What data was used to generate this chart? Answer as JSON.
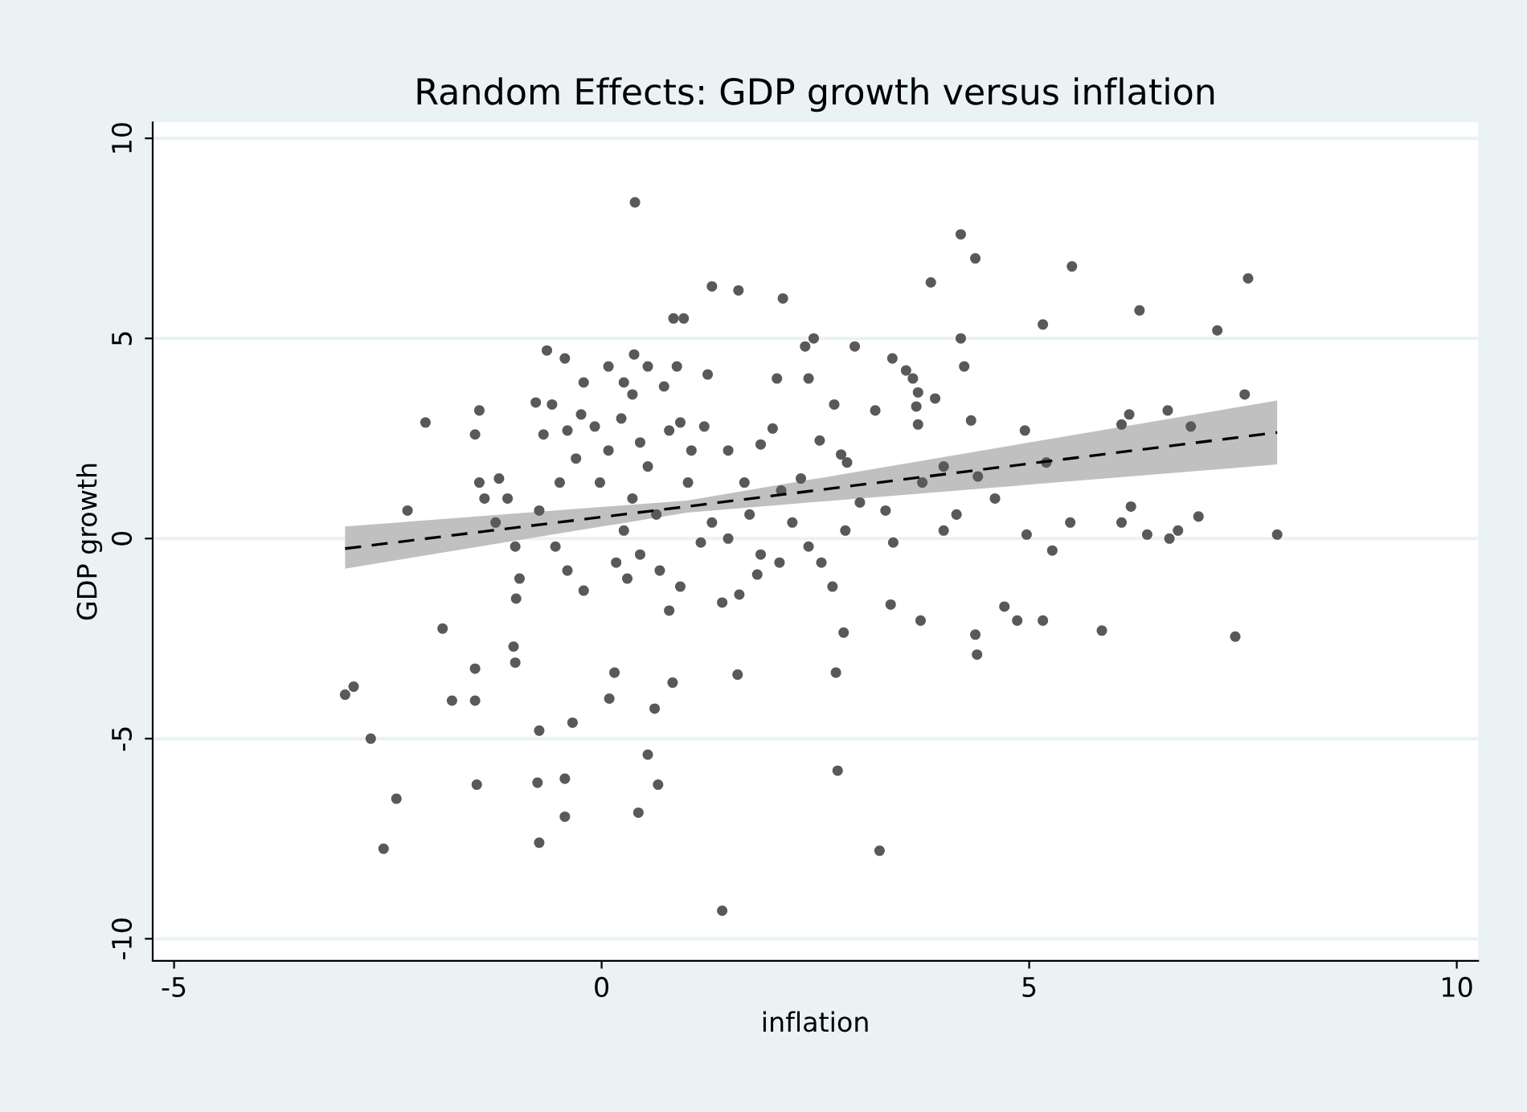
{
  "chart_data": {
    "type": "scatter",
    "title": "Random Effects: GDP growth versus inflation",
    "xlabel": "inflation",
    "ylabel": "GDP growth",
    "xlim": [
      -5.25,
      10.25
    ],
    "ylim": [
      -10.55,
      10.4
    ],
    "xticks": [
      -5,
      0,
      5,
      10
    ],
    "yticks": [
      -10,
      -5,
      0,
      5,
      10
    ],
    "grid": "y",
    "series": [
      {
        "color": "#595959",
        "marker": "circle",
        "x": [
          -3.0,
          -2.9,
          -2.7,
          -2.4,
          -2.55,
          -2.27,
          -2.06,
          -1.86,
          -1.75,
          -1.48,
          -1.48,
          -1.46,
          -1.03,
          -1.01,
          -0.75,
          -0.73,
          -0.73,
          -0.43,
          -0.43,
          -0.34,
          0.09,
          0.15,
          0.43,
          0.54,
          0.62,
          0.66,
          0.83,
          0.3,
          0.39,
          1.29,
          1.6,
          2.12,
          0.96,
          0.84,
          0.38,
          -0.64,
          -0.43,
          3.85,
          4.2,
          4.37,
          5.5,
          5.16,
          6.29,
          7.2,
          7.56,
          7.52,
          7.9,
          7.41,
          5.85,
          5.16,
          4.86,
          4.71,
          4.39,
          4.37,
          3.73,
          3.38,
          2.83,
          2.76,
          3.25,
          1.41,
          2.74,
          1.59,
          4.2,
          4.24,
          4.32,
          4.95,
          5.2,
          4.97,
          5.27,
          6.08,
          6.19,
          6.38,
          6.74,
          6.64,
          6.98,
          6.08,
          6.17,
          6.62,
          6.89,
          5.48,
          4.6,
          4.0,
          4.4,
          4.0,
          3.56,
          3.64,
          3.7,
          3.68,
          3.7,
          3.9,
          3.4,
          2.96,
          3.2,
          3.75,
          2.87,
          2.55,
          2.72,
          2.48,
          2.38,
          2.42,
          2.8,
          2.05,
          2.0,
          1.86,
          1.73,
          1.48,
          2.33,
          3.02,
          2.57,
          2.7,
          2.08,
          1.41,
          1.61,
          1.86,
          1.82,
          -1.43,
          -1.48,
          -1.37,
          -1.43,
          -1.2,
          -1.1,
          -1.24,
          -1.01,
          -0.96,
          -1.0,
          -0.68,
          -0.77,
          -0.58,
          -0.4,
          -0.3,
          -0.49,
          -0.73,
          -0.54,
          -0.4,
          -0.21,
          -0.24,
          -0.08,
          0.08,
          -0.02,
          0.23,
          0.36,
          0.45,
          0.54,
          0.36,
          0.64,
          0.26,
          0.45,
          0.68,
          0.17,
          0.79,
          0.92,
          1.05,
          1.2,
          1.01,
          0.73,
          0.88,
          1.24,
          1.16,
          0.92,
          0.79,
          -0.21,
          0.08,
          0.26,
          0.54,
          1.29,
          1.48,
          1.67,
          2.1,
          2.23,
          2.42,
          2.85,
          3.32,
          3.41,
          4.15
        ],
        "values": [
          -3.9,
          -3.7,
          -5.0,
          -6.5,
          -7.75,
          0.7,
          2.9,
          -2.25,
          -4.05,
          -4.05,
          -3.25,
          -6.15,
          -2.7,
          -3.1,
          -6.1,
          -7.6,
          -4.8,
          -6.0,
          -6.95,
          -4.6,
          -4.0,
          -3.35,
          -6.85,
          -5.4,
          -4.25,
          -6.15,
          -3.6,
          -1.0,
          8.4,
          6.3,
          6.2,
          6.0,
          5.5,
          5.5,
          4.6,
          4.7,
          4.5,
          6.4,
          7.6,
          7.0,
          6.8,
          5.35,
          5.7,
          5.2,
          6.5,
          3.6,
          0.1,
          -2.45,
          -2.3,
          -2.05,
          -2.05,
          -1.7,
          -2.9,
          -2.4,
          -2.05,
          -1.65,
          -2.35,
          -5.8,
          -7.8,
          -9.3,
          -3.35,
          -3.4,
          5.0,
          4.3,
          2.95,
          2.7,
          1.9,
          0.1,
          -0.3,
          0.4,
          0.8,
          0.1,
          0.2,
          0.0,
          0.55,
          2.85,
          3.1,
          3.2,
          2.8,
          0.4,
          1.0,
          0.2,
          1.55,
          1.8,
          4.2,
          4.0,
          3.65,
          3.3,
          2.85,
          3.5,
          4.5,
          4.8,
          3.2,
          1.4,
          1.9,
          2.45,
          3.35,
          5.0,
          4.8,
          4.0,
          2.1,
          4.0,
          2.75,
          2.35,
          0.6,
          2.2,
          1.5,
          0.9,
          -0.6,
          -1.2,
          -0.6,
          -1.6,
          -1.4,
          -0.4,
          -0.9,
          3.2,
          2.6,
          1.0,
          1.4,
          1.5,
          1.0,
          0.4,
          -0.2,
          -1.0,
          -1.5,
          2.6,
          3.4,
          3.35,
          2.7,
          2.0,
          1.4,
          0.7,
          -0.2,
          -0.8,
          -1.3,
          3.1,
          2.8,
          2.2,
          1.4,
          3.0,
          3.6,
          2.4,
          1.8,
          1.0,
          0.6,
          0.2,
          -0.4,
          -0.8,
          -0.6,
          2.7,
          2.9,
          2.2,
          2.8,
          1.4,
          3.8,
          4.3,
          4.1,
          -0.1,
          -1.2,
          -1.8,
          3.9,
          4.3,
          3.9,
          4.3,
          0.4,
          0.0,
          1.4,
          1.2,
          0.4,
          -0.2,
          0.2,
          0.7,
          -0.1,
          0.6
        ]
      },
      {
        "type": "line",
        "color": "#000000",
        "line_style": "dashed",
        "marker": "none",
        "x": [
          -3,
          1,
          7.9
        ],
        "values": [
          -0.25,
          0.8,
          2.65
        ],
        "lower": [
          -0.75,
          0.65,
          1.85
        ],
        "upper": [
          0.3,
          0.95,
          3.45
        ]
      }
    ]
  }
}
